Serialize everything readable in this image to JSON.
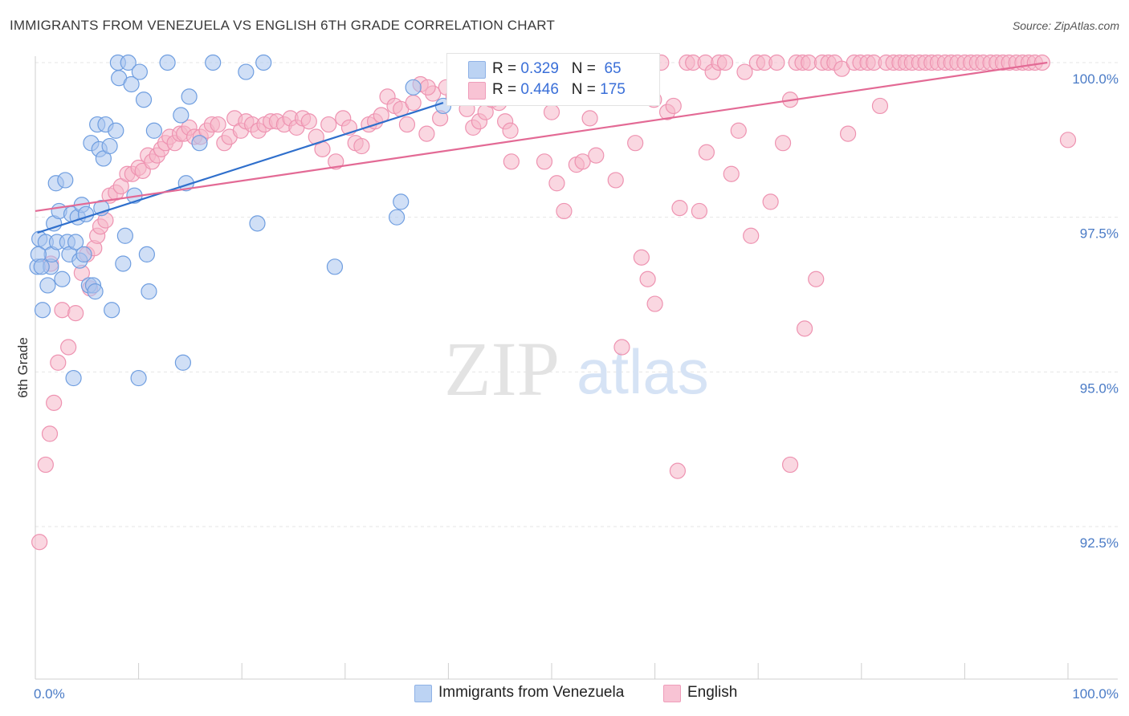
{
  "title": "IMMIGRANTS FROM VENEZUELA VS ENGLISH 6TH GRADE CORRELATION CHART",
  "source": "Source: ZipAtlas.com",
  "watermark": {
    "zip": "ZIP",
    "atlas": "atlas"
  },
  "colors": {
    "blue_fill": "#a9c4ee",
    "blue_stroke": "#6f9ee0",
    "blue_line": "#2f6fcc",
    "pink_fill": "#f5b6c9",
    "pink_stroke": "#ee93b1",
    "pink_line": "#e36a95",
    "axis_text": "#4a7bc6",
    "grid": "#e6e6e6"
  },
  "legend_top": {
    "rows": [
      {
        "r_label": "R =",
        "r_value": "0.329",
        "n_label": "N =",
        "n_value": "65",
        "series": "blue"
      },
      {
        "r_label": "R =",
        "r_value": "0.446",
        "n_label": "N =",
        "n_value": "175",
        "series": "pink"
      }
    ]
  },
  "legend_bottom": [
    {
      "label": "Immigrants from Venezuela",
      "series": "blue"
    },
    {
      "label": "English",
      "series": "pink"
    }
  ],
  "chart_data": {
    "type": "scatter",
    "title": "IMMIGRANTS FROM VENEZUELA VS ENGLISH 6TH GRADE CORRELATION CHART",
    "xlabel": "",
    "ylabel": "6th Grade",
    "xlim": [
      0,
      100
    ],
    "ylim": [
      90.0,
      100.3
    ],
    "x_tick_labels": [
      {
        "value": 0,
        "label": "0.0%"
      },
      {
        "value": 100,
        "label": "100.0%"
      }
    ],
    "y_ticks": [
      {
        "value": 100.0,
        "label": "100.0%"
      },
      {
        "value": 97.5,
        "label": "97.5%"
      },
      {
        "value": 95.0,
        "label": "95.0%"
      },
      {
        "value": 92.5,
        "label": "92.5%"
      }
    ],
    "series": [
      {
        "name": "Immigrants from Venezuela",
        "color": "blue",
        "r": 0.329,
        "n": 65,
        "trend": [
          [
            0.2,
            97.25
          ],
          [
            39.5,
            99.35
          ]
        ],
        "points": [
          [
            0.2,
            96.7
          ],
          [
            0.4,
            97.15
          ],
          [
            0.7,
            96.0
          ],
          [
            1.0,
            97.1
          ],
          [
            1.2,
            96.4
          ],
          [
            1.5,
            96.7
          ],
          [
            1.6,
            96.9
          ],
          [
            1.8,
            97.4
          ],
          [
            2.0,
            98.05
          ],
          [
            2.1,
            97.1
          ],
          [
            2.3,
            97.6
          ],
          [
            2.6,
            96.5
          ],
          [
            2.9,
            98.1
          ],
          [
            3.1,
            97.1
          ],
          [
            3.3,
            96.9
          ],
          [
            3.5,
            97.55
          ],
          [
            3.7,
            94.9
          ],
          [
            3.9,
            97.1
          ],
          [
            4.1,
            97.5
          ],
          [
            4.3,
            96.8
          ],
          [
            4.5,
            97.7
          ],
          [
            4.7,
            96.9
          ],
          [
            4.9,
            97.55
          ],
          [
            5.2,
            96.4
          ],
          [
            5.4,
            98.7
          ],
          [
            5.6,
            96.4
          ],
          [
            5.8,
            96.3
          ],
          [
            6.0,
            99.0
          ],
          [
            6.2,
            98.6
          ],
          [
            6.4,
            97.65
          ],
          [
            6.6,
            98.45
          ],
          [
            6.8,
            99.0
          ],
          [
            7.2,
            98.65
          ],
          [
            7.4,
            96.0
          ],
          [
            7.8,
            98.9
          ],
          [
            8.0,
            100.0
          ],
          [
            8.1,
            99.75
          ],
          [
            8.7,
            97.2
          ],
          [
            8.5,
            96.75
          ],
          [
            9.0,
            100.0
          ],
          [
            9.3,
            99.65
          ],
          [
            9.6,
            97.85
          ],
          [
            10.0,
            94.9
          ],
          [
            10.1,
            99.85
          ],
          [
            10.5,
            99.4
          ],
          [
            10.8,
            96.9
          ],
          [
            11.0,
            96.3
          ],
          [
            11.5,
            98.9
          ],
          [
            12.8,
            100.0
          ],
          [
            14.1,
            99.15
          ],
          [
            14.3,
            95.15
          ],
          [
            14.6,
            98.05
          ],
          [
            14.9,
            99.45
          ],
          [
            15.9,
            98.7
          ],
          [
            17.2,
            100.0
          ],
          [
            20.4,
            99.85
          ],
          [
            21.5,
            97.4
          ],
          [
            22.1,
            100.0
          ],
          [
            29.0,
            96.7
          ],
          [
            35.0,
            97.5
          ],
          [
            35.4,
            97.75
          ],
          [
            36.6,
            99.6
          ],
          [
            39.5,
            99.3
          ],
          [
            0.3,
            96.9
          ],
          [
            0.6,
            96.7
          ]
        ]
      },
      {
        "name": "English",
        "color": "pink",
        "r": 0.446,
        "n": 175,
        "trend": [
          [
            0.0,
            97.6
          ],
          [
            98.0,
            100.0
          ]
        ],
        "points": [
          [
            0.4,
            92.25
          ],
          [
            1.0,
            93.5
          ],
          [
            1.4,
            94.0
          ],
          [
            1.8,
            94.5
          ],
          [
            2.2,
            95.15
          ],
          [
            2.6,
            96.0
          ],
          [
            3.2,
            95.4
          ],
          [
            3.9,
            95.95
          ],
          [
            4.5,
            96.6
          ],
          [
            5.0,
            96.9
          ],
          [
            5.3,
            96.35
          ],
          [
            5.7,
            97.0
          ],
          [
            6.0,
            97.2
          ],
          [
            6.3,
            97.35
          ],
          [
            6.8,
            97.45
          ],
          [
            7.2,
            97.85
          ],
          [
            7.8,
            97.9
          ],
          [
            8.3,
            98.0
          ],
          [
            8.9,
            98.2
          ],
          [
            9.4,
            98.2
          ],
          [
            10.0,
            98.3
          ],
          [
            10.4,
            98.25
          ],
          [
            10.9,
            98.5
          ],
          [
            11.3,
            98.4
          ],
          [
            11.8,
            98.5
          ],
          [
            12.2,
            98.6
          ],
          [
            12.6,
            98.7
          ],
          [
            13.0,
            98.8
          ],
          [
            13.5,
            98.7
          ],
          [
            14.0,
            98.85
          ],
          [
            14.4,
            98.85
          ],
          [
            14.9,
            98.95
          ],
          [
            15.4,
            98.8
          ],
          [
            16.0,
            98.8
          ],
          [
            16.6,
            98.9
          ],
          [
            17.1,
            99.0
          ],
          [
            17.7,
            99.0
          ],
          [
            18.3,
            98.7
          ],
          [
            18.8,
            98.8
          ],
          [
            19.3,
            99.1
          ],
          [
            19.9,
            98.9
          ],
          [
            20.4,
            99.05
          ],
          [
            21.0,
            99.0
          ],
          [
            21.6,
            98.9
          ],
          [
            22.2,
            99.0
          ],
          [
            22.8,
            99.05
          ],
          [
            23.4,
            99.05
          ],
          [
            24.1,
            99.0
          ],
          [
            24.7,
            99.1
          ],
          [
            25.3,
            98.95
          ],
          [
            25.9,
            99.1
          ],
          [
            26.5,
            99.05
          ],
          [
            27.2,
            98.8
          ],
          [
            27.8,
            98.6
          ],
          [
            28.4,
            99.0
          ],
          [
            29.1,
            98.4
          ],
          [
            29.8,
            99.1
          ],
          [
            30.4,
            98.95
          ],
          [
            31.0,
            98.7
          ],
          [
            31.6,
            98.65
          ],
          [
            32.3,
            99.0
          ],
          [
            32.9,
            99.05
          ],
          [
            33.5,
            99.15
          ],
          [
            34.1,
            99.45
          ],
          [
            34.8,
            99.3
          ],
          [
            35.4,
            99.25
          ],
          [
            36.0,
            99.0
          ],
          [
            36.6,
            99.35
          ],
          [
            37.3,
            99.65
          ],
          [
            37.9,
            98.85
          ],
          [
            38.5,
            99.5
          ],
          [
            39.2,
            99.1
          ],
          [
            39.8,
            99.6
          ],
          [
            40.5,
            99.45
          ],
          [
            41.1,
            99.55
          ],
          [
            41.8,
            99.25
          ],
          [
            42.4,
            98.95
          ],
          [
            43.0,
            99.05
          ],
          [
            43.6,
            99.2
          ],
          [
            44.2,
            99.4
          ],
          [
            44.9,
            99.35
          ],
          [
            45.5,
            99.05
          ],
          [
            46.1,
            98.4
          ],
          [
            46.8,
            99.7
          ],
          [
            47.4,
            99.45
          ],
          [
            48.0,
            99.7
          ],
          [
            48.6,
            99.55
          ],
          [
            49.3,
            98.4
          ],
          [
            49.9,
            99.9
          ],
          [
            50.5,
            98.05
          ],
          [
            51.2,
            97.6
          ],
          [
            51.8,
            99.8
          ],
          [
            52.4,
            98.35
          ],
          [
            53.0,
            98.4
          ],
          [
            53.7,
            99.1
          ],
          [
            54.3,
            98.5
          ],
          [
            54.9,
            100.0
          ],
          [
            55.5,
            99.8
          ],
          [
            56.2,
            98.1
          ],
          [
            56.8,
            95.4
          ],
          [
            57.4,
            99.75
          ],
          [
            58.1,
            98.7
          ],
          [
            58.7,
            96.85
          ],
          [
            59.3,
            96.5
          ],
          [
            59.9,
            99.4
          ],
          [
            60.6,
            100.0
          ],
          [
            61.2,
            99.2
          ],
          [
            61.8,
            99.3
          ],
          [
            62.4,
            97.65
          ],
          [
            63.1,
            100.0
          ],
          [
            63.7,
            100.0
          ],
          [
            64.3,
            97.6
          ],
          [
            64.9,
            100.0
          ],
          [
            65.6,
            99.85
          ],
          [
            66.2,
            100.0
          ],
          [
            66.8,
            100.0
          ],
          [
            67.4,
            98.2
          ],
          [
            68.1,
            98.9
          ],
          [
            68.7,
            99.85
          ],
          [
            69.3,
            97.2
          ],
          [
            69.9,
            100.0
          ],
          [
            70.6,
            100.0
          ],
          [
            71.2,
            97.75
          ],
          [
            71.8,
            100.0
          ],
          [
            72.4,
            98.7
          ],
          [
            73.1,
            99.4
          ],
          [
            73.7,
            100.0
          ],
          [
            74.3,
            100.0
          ],
          [
            74.9,
            100.0
          ],
          [
            75.6,
            96.5
          ],
          [
            76.2,
            100.0
          ],
          [
            76.8,
            100.0
          ],
          [
            77.4,
            100.0
          ],
          [
            78.1,
            99.9
          ],
          [
            78.7,
            98.85
          ],
          [
            79.3,
            100.0
          ],
          [
            79.9,
            100.0
          ],
          [
            80.6,
            100.0
          ],
          [
            81.2,
            100.0
          ],
          [
            81.8,
            99.3
          ],
          [
            82.4,
            100.0
          ],
          [
            83.1,
            100.0
          ],
          [
            83.7,
            100.0
          ],
          [
            84.3,
            100.0
          ],
          [
            84.9,
            100.0
          ],
          [
            85.6,
            100.0
          ],
          [
            86.2,
            100.0
          ],
          [
            86.8,
            100.0
          ],
          [
            87.4,
            100.0
          ],
          [
            88.1,
            100.0
          ],
          [
            88.7,
            100.0
          ],
          [
            89.3,
            100.0
          ],
          [
            90.0,
            100.0
          ],
          [
            90.6,
            100.0
          ],
          [
            91.2,
            100.0
          ],
          [
            91.8,
            100.0
          ],
          [
            92.5,
            100.0
          ],
          [
            93.1,
            100.0
          ],
          [
            93.7,
            100.0
          ],
          [
            94.3,
            100.0
          ],
          [
            95.0,
            100.0
          ],
          [
            95.6,
            100.0
          ],
          [
            96.2,
            100.0
          ],
          [
            96.8,
            100.0
          ],
          [
            97.5,
            100.0
          ],
          [
            1.5,
            96.75
          ],
          [
            46.0,
            98.9
          ],
          [
            50.0,
            99.2
          ],
          [
            62.2,
            93.4
          ],
          [
            73.1,
            93.5
          ],
          [
            74.5,
            95.7
          ],
          [
            60.0,
            96.1
          ],
          [
            100.0,
            98.75
          ],
          [
            38.0,
            99.6
          ],
          [
            65.0,
            98.55
          ]
        ]
      }
    ]
  }
}
